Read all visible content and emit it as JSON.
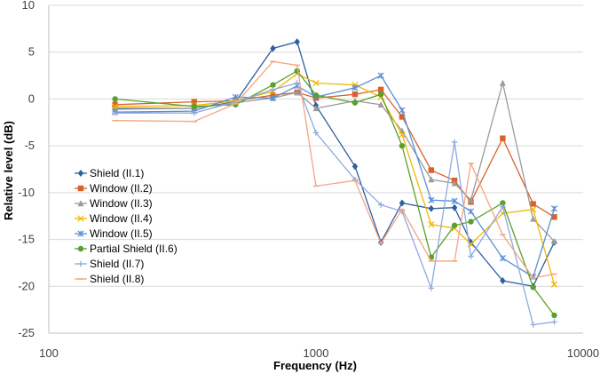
{
  "chart_data": {
    "type": "line",
    "title": "",
    "xlabel": "Frequency (Hz)",
    "ylabel": "Relative level (dB)",
    "xscale": "log",
    "xlim": [
      100,
      10000
    ],
    "ylim": [
      -25,
      10
    ],
    "x_ticks": [
      100,
      1000,
      10000
    ],
    "x_tick_labels": [
      "100",
      "1000",
      "10000"
    ],
    "y_ticks": [
      10,
      5,
      0,
      -5,
      -10,
      -15,
      -20,
      -25
    ],
    "y_tick_labels": [
      "10",
      "5",
      "0",
      "-5",
      "-10",
      "-15",
      "-20",
      "-25"
    ],
    "grid": "horizontal",
    "legend_position": "left",
    "x": [
      177,
      350,
      500,
      690,
      850,
      1000,
      1400,
      1750,
      2100,
      2700,
      3300,
      3800,
      5000,
      6500,
      7800
    ],
    "series": [
      {
        "name": "Shield (II.1)",
        "color": "#2E5F9E",
        "marker": "diamond",
        "values": [
          -1.0,
          -1.0,
          -0.3,
          5.4,
          6.1,
          -0.7,
          -7.2,
          -15.3,
          -11.1,
          -11.7,
          -11.6,
          -15.3,
          -19.4,
          -20.0,
          -15.3
        ]
      },
      {
        "name": "Window (II.2)",
        "color": "#D9622B",
        "marker": "square",
        "values": [
          -0.6,
          -0.3,
          -0.2,
          0.4,
          0.7,
          0.1,
          0.5,
          1.0,
          -1.9,
          -7.6,
          -8.7,
          -11.0,
          -4.2,
          -11.2,
          -12.6
        ]
      },
      {
        "name": "Window (II.3)",
        "color": "#9B9B9B",
        "marker": "triangle",
        "values": [
          -1.1,
          -1.0,
          -0.4,
          0.1,
          0.7,
          -1.0,
          -0.2,
          -0.6,
          -3.4,
          -8.6,
          -9.0,
          -10.8,
          1.7,
          -12.8,
          -15.2
        ]
      },
      {
        "name": "Window (II.4)",
        "color": "#F2B705",
        "marker": "x",
        "values": [
          -0.8,
          -0.7,
          -0.2,
          0.8,
          2.7,
          1.7,
          1.5,
          0.2,
          -3.8,
          -13.4,
          -13.8,
          -15.5,
          -12.2,
          -11.8,
          -19.8
        ]
      },
      {
        "name": "Window (II.5)",
        "color": "#5B8FD6",
        "marker": "star",
        "values": [
          -1.4,
          -1.3,
          0.2,
          0.1,
          1.4,
          0.2,
          1.2,
          2.5,
          -1.2,
          -10.8,
          -10.9,
          -12.0,
          -17.0,
          -19.0,
          -11.7
        ]
      },
      {
        "name": "Partial Shield (II.6)",
        "color": "#5AA02C",
        "marker": "circle",
        "values": [
          0.0,
          -0.8,
          -0.6,
          1.5,
          3.0,
          0.4,
          -0.4,
          0.5,
          -5.0,
          -16.9,
          -13.5,
          -13.1,
          -11.1,
          -20.1,
          -23.1
        ]
      },
      {
        "name": "Shield (II.7)",
        "color": "#8FAADC",
        "marker": "plus",
        "values": [
          -1.5,
          -1.5,
          -0.3,
          1.0,
          1.7,
          -3.6,
          -8.6,
          -11.3,
          -12.0,
          -20.2,
          -4.6,
          -16.8,
          -11.5,
          -24.1,
          -23.8
        ]
      },
      {
        "name": "Shield (II.8)",
        "color": "#F4A582",
        "marker": "dash",
        "values": [
          -2.3,
          -2.4,
          -0.5,
          4.0,
          3.6,
          -9.3,
          -8.7,
          -15.4,
          -11.8,
          -17.3,
          -17.3,
          -6.9,
          -14.5,
          -19.1,
          -18.7
        ]
      }
    ]
  }
}
